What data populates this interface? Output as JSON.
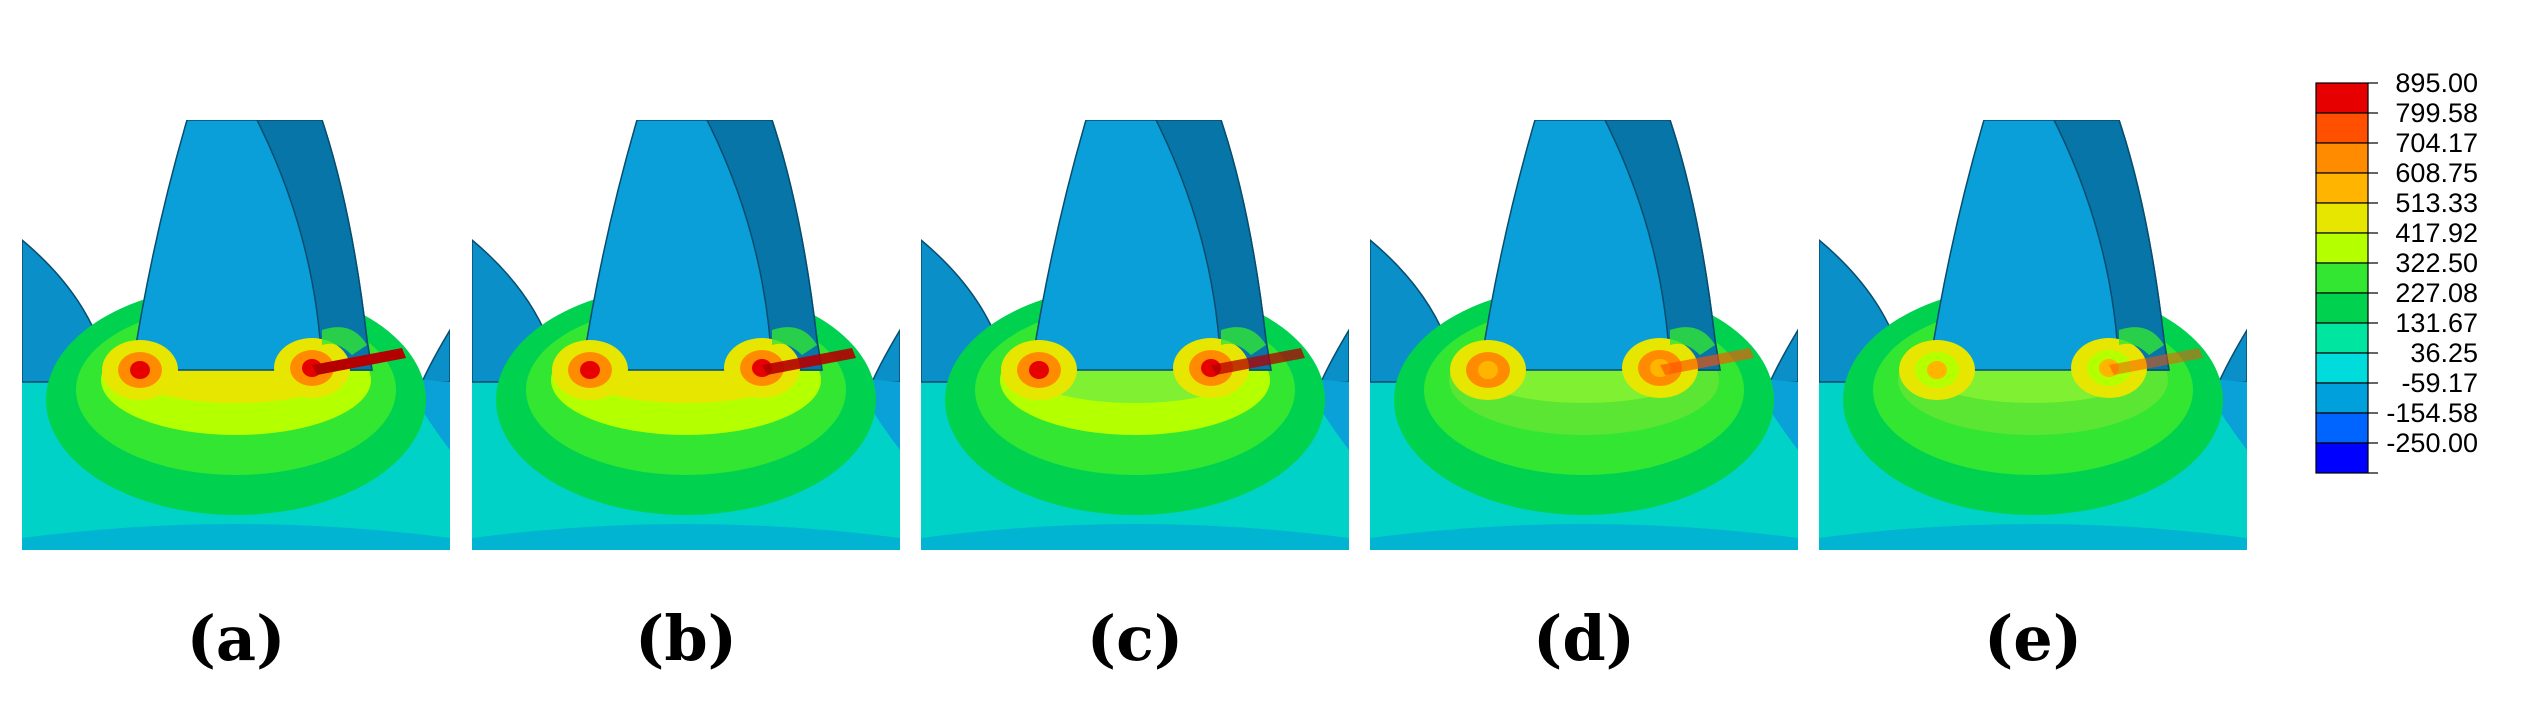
{
  "panels": [
    {
      "label": "(a)",
      "red_intensity": 1.0
    },
    {
      "label": "(b)",
      "red_intensity": 0.85
    },
    {
      "label": "(c)",
      "red_intensity": 0.6
    },
    {
      "label": "(d)",
      "red_intensity": 0.4
    },
    {
      "label": "(e)",
      "red_intensity": 0.2
    }
  ],
  "legend": {
    "entries": [
      {
        "value": "895.00",
        "color": "#e60000"
      },
      {
        "value": "799.58",
        "color": "#ff5000"
      },
      {
        "value": "704.17",
        "color": "#ff8c00"
      },
      {
        "value": "608.75",
        "color": "#ffb400"
      },
      {
        "value": "513.33",
        "color": "#e6e600"
      },
      {
        "value": "417.92",
        "color": "#b4ff00"
      },
      {
        "value": "322.50",
        "color": "#32e632"
      },
      {
        "value": "227.08",
        "color": "#00d250"
      },
      {
        "value": "131.67",
        "color": "#00e6a0"
      },
      {
        "value": "36.25",
        "color": "#00dcdc"
      },
      {
        "value": "-59.17",
        "color": "#00a0dc"
      },
      {
        "value": "-154.58",
        "color": "#0064ff"
      },
      {
        "value": "-250.00",
        "color": "#0000ff"
      }
    ]
  }
}
